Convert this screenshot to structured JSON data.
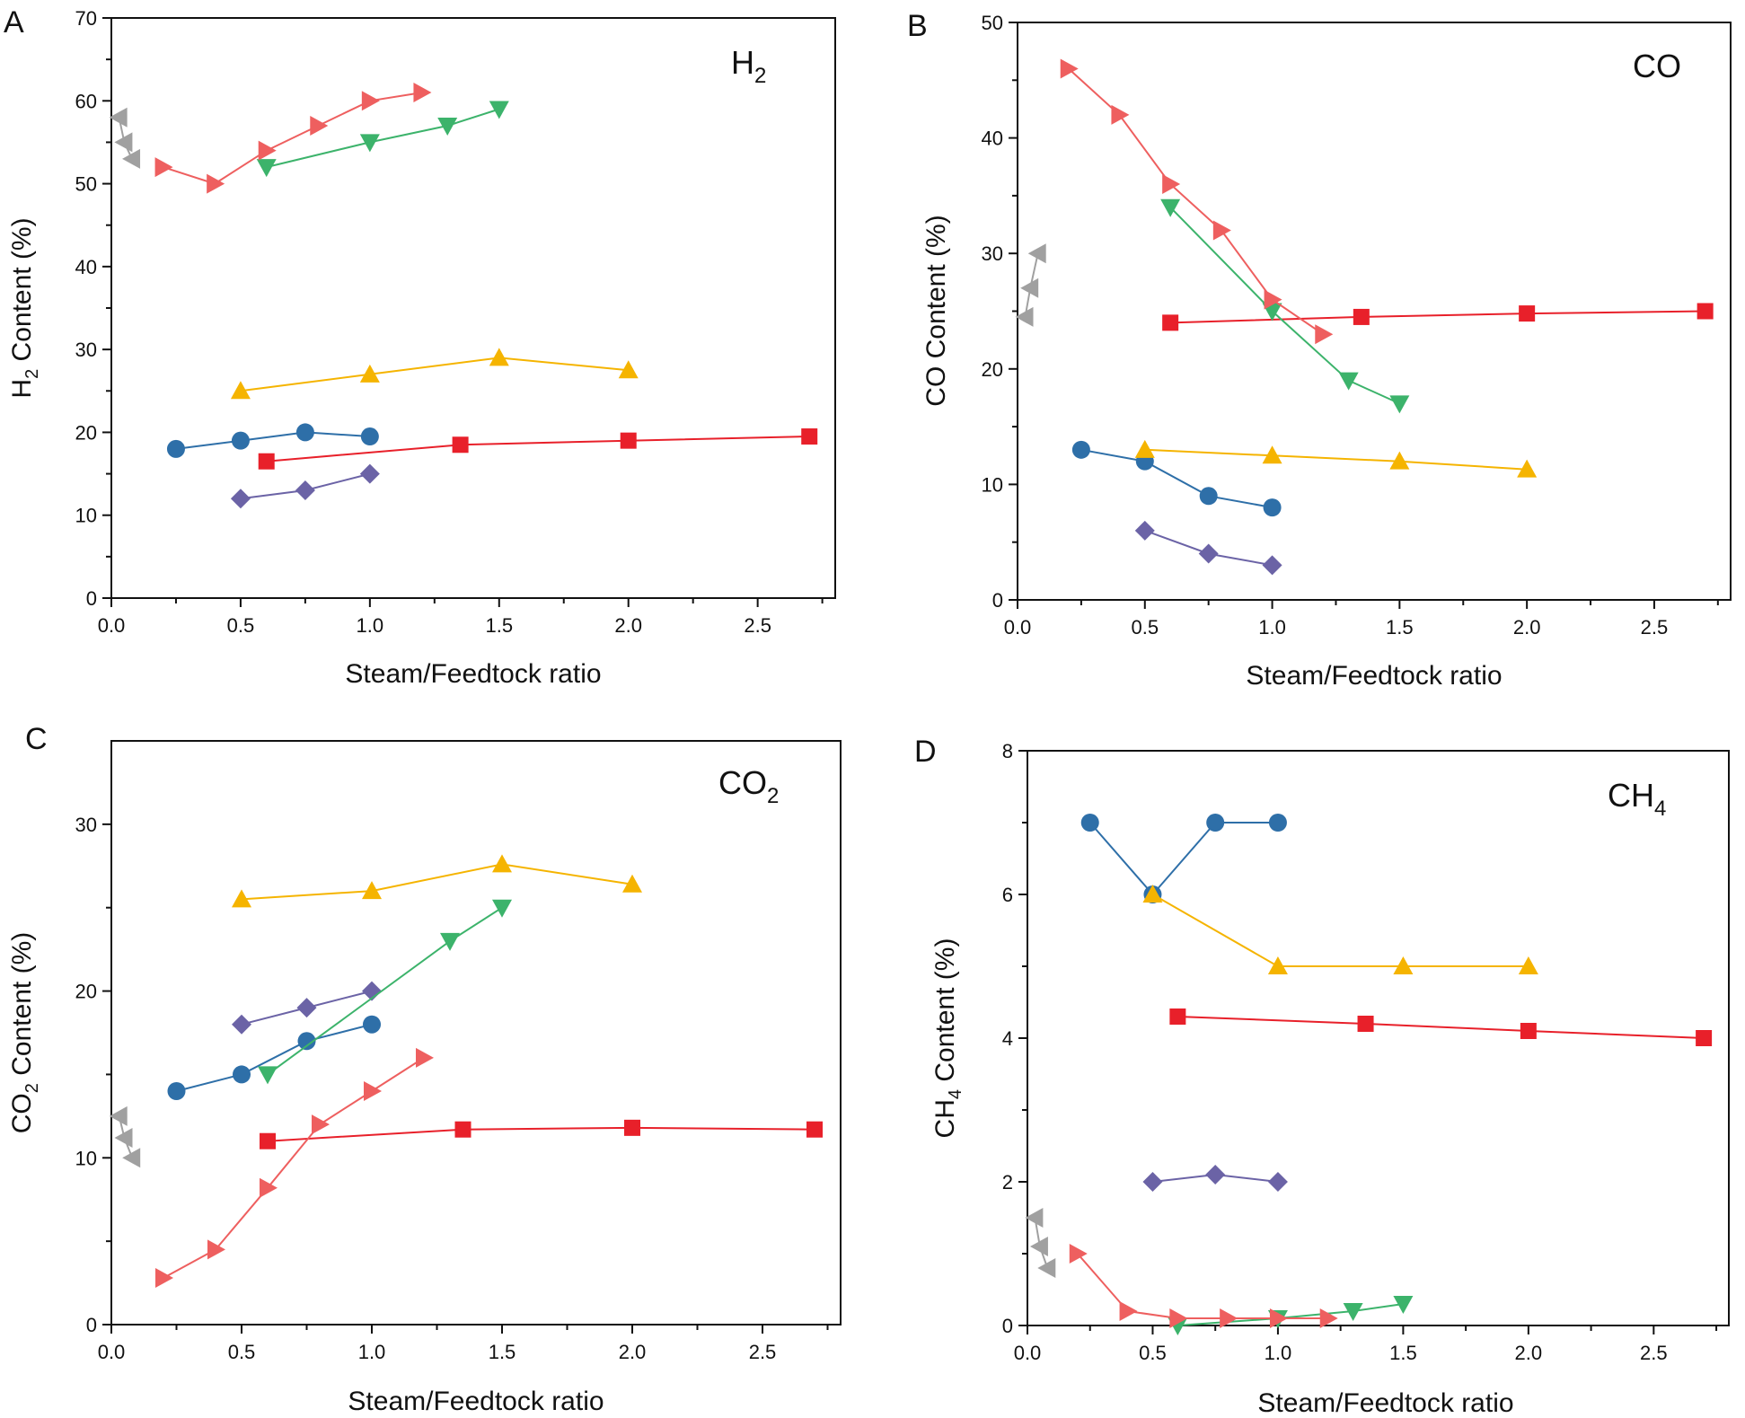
{
  "chart_data": [
    {
      "type": "line",
      "panel": "A",
      "title": "H2",
      "title_main": "H",
      "title_sub": "2",
      "xlabel": "Steam/Feedtock ratio",
      "ylabel": "H2 Content (%)",
      "ylabel_pre": "H",
      "ylabel_sub": "2",
      "ylabel_post": " Content (%)",
      "xlim": [
        0,
        2.8
      ],
      "ylim": [
        0,
        70
      ],
      "xticks": [
        0.0,
        0.5,
        1.0,
        1.5,
        2.0,
        2.5
      ],
      "xtick_labels": [
        "0.0",
        "0.5",
        "1.0",
        "1.5",
        "2.0",
        "2.5"
      ],
      "yticks": [
        0,
        10,
        20,
        30,
        40,
        50,
        60,
        70
      ],
      "ytick_labels": [
        "0",
        "10",
        "20",
        "30",
        "40",
        "50",
        "60",
        "70"
      ],
      "series": [
        {
          "name": "red-square",
          "marker": "square",
          "color": "#e8202a",
          "x": [
            0.6,
            1.35,
            2.0,
            2.7
          ],
          "y": [
            16.5,
            18.5,
            19.0,
            19.5
          ]
        },
        {
          "name": "blue-circle",
          "marker": "circle",
          "color": "#2e6fa8",
          "x": [
            0.25,
            0.5,
            0.75,
            1.0
          ],
          "y": [
            18.0,
            19.0,
            20.0,
            19.5
          ]
        },
        {
          "name": "yellow-triangle-up",
          "marker": "triangle-up",
          "color": "#f5b400",
          "x": [
            0.5,
            1.0,
            1.5,
            2.0
          ],
          "y": [
            25.0,
            27.0,
            29.0,
            27.5
          ]
        },
        {
          "name": "purple-diamond",
          "marker": "diamond",
          "color": "#6b63a6",
          "x": [
            0.5,
            0.75,
            1.0
          ],
          "y": [
            12.0,
            13.0,
            15.0
          ]
        },
        {
          "name": "green-triangle-down",
          "marker": "triangle-down",
          "color": "#3cb36b",
          "x": [
            0.6,
            1.0,
            1.3,
            1.5
          ],
          "y": [
            52.0,
            55.0,
            57.0,
            59.0
          ]
        },
        {
          "name": "salmon-triangle-right",
          "marker": "triangle-right",
          "color": "#ee5f5f",
          "x": [
            0.2,
            0.4,
            0.6,
            0.8,
            1.0,
            1.2
          ],
          "y": [
            52.0,
            50.0,
            54.0,
            57.0,
            60.0,
            61.0
          ]
        },
        {
          "name": "gray-triangle-left",
          "marker": "triangle-left",
          "color": "#a0a0a0",
          "x": [
            0.03,
            0.05,
            0.08
          ],
          "y": [
            58.0,
            55.0,
            53.0
          ]
        }
      ]
    },
    {
      "type": "line",
      "panel": "B",
      "title": "CO",
      "title_main": "CO",
      "title_sub": "",
      "xlabel": "Steam/Feedtock ratio",
      "ylabel": "CO Content (%)",
      "ylabel_pre": "CO Content (%)",
      "ylabel_sub": "",
      "ylabel_post": "",
      "xlim": [
        0,
        2.8
      ],
      "ylim": [
        0,
        50
      ],
      "xticks": [
        0.0,
        0.5,
        1.0,
        1.5,
        2.0,
        2.5
      ],
      "xtick_labels": [
        "0.0",
        "0.5",
        "1.0",
        "1.5",
        "2.0",
        "2.5"
      ],
      "yticks": [
        0,
        10,
        20,
        30,
        40,
        50
      ],
      "ytick_labels": [
        "0",
        "10",
        "20",
        "30",
        "40",
        "50"
      ],
      "series": [
        {
          "name": "red-square",
          "marker": "square",
          "color": "#e8202a",
          "x": [
            0.6,
            1.35,
            2.0,
            2.7
          ],
          "y": [
            24.0,
            24.5,
            24.8,
            25.0
          ]
        },
        {
          "name": "blue-circle",
          "marker": "circle",
          "color": "#2e6fa8",
          "x": [
            0.25,
            0.5,
            0.75,
            1.0
          ],
          "y": [
            13.0,
            12.0,
            9.0,
            8.0
          ]
        },
        {
          "name": "yellow-triangle-up",
          "marker": "triangle-up",
          "color": "#f5b400",
          "x": [
            0.5,
            1.0,
            1.5,
            2.0
          ],
          "y": [
            13.0,
            12.5,
            12.0,
            11.3
          ]
        },
        {
          "name": "purple-diamond",
          "marker": "diamond",
          "color": "#6b63a6",
          "x": [
            0.5,
            0.75,
            1.0
          ],
          "y": [
            6.0,
            4.0,
            3.0
          ]
        },
        {
          "name": "green-triangle-down",
          "marker": "triangle-down",
          "color": "#3cb36b",
          "x": [
            0.6,
            1.0,
            1.3,
            1.5
          ],
          "y": [
            34.0,
            25.0,
            19.0,
            17.0
          ]
        },
        {
          "name": "salmon-triangle-right",
          "marker": "triangle-right",
          "color": "#ee5f5f",
          "x": [
            0.2,
            0.4,
            0.6,
            0.8,
            1.0,
            1.2
          ],
          "y": [
            46.0,
            42.0,
            36.0,
            32.0,
            26.0,
            23.0
          ]
        },
        {
          "name": "gray-triangle-left",
          "marker": "triangle-left",
          "color": "#a0a0a0",
          "x": [
            0.03,
            0.05,
            0.08
          ],
          "y": [
            24.5,
            27.0,
            30.0
          ]
        }
      ]
    },
    {
      "type": "line",
      "panel": "C",
      "title": "CO2",
      "title_main": "CO",
      "title_sub": "2",
      "xlabel": "Steam/Feedtock ratio",
      "ylabel": "CO2 Content (%)",
      "ylabel_pre": "CO",
      "ylabel_sub": "2",
      "ylabel_post": " Content (%)",
      "xlim": [
        0,
        2.8
      ],
      "ylim": [
        0,
        35
      ],
      "xticks": [
        0.0,
        0.5,
        1.0,
        1.5,
        2.0,
        2.5
      ],
      "xtick_labels": [
        "0.0",
        "0.5",
        "1.0",
        "1.5",
        "2.0",
        "2.5"
      ],
      "yticks": [
        0,
        10,
        20,
        30
      ],
      "ytick_labels": [
        "0",
        "10",
        "20",
        "30"
      ],
      "series": [
        {
          "name": "red-square",
          "marker": "square",
          "color": "#e8202a",
          "x": [
            0.6,
            1.35,
            2.0,
            2.7
          ],
          "y": [
            11.0,
            11.7,
            11.8,
            11.7
          ]
        },
        {
          "name": "blue-circle",
          "marker": "circle",
          "color": "#2e6fa8",
          "x": [
            0.25,
            0.5,
            0.75,
            1.0
          ],
          "y": [
            14.0,
            15.0,
            17.0,
            18.0
          ]
        },
        {
          "name": "yellow-triangle-up",
          "marker": "triangle-up",
          "color": "#f5b400",
          "x": [
            0.5,
            1.0,
            1.5,
            2.0
          ],
          "y": [
            25.5,
            26.0,
            27.6,
            26.4
          ]
        },
        {
          "name": "purple-diamond",
          "marker": "diamond",
          "color": "#6b63a6",
          "x": [
            0.5,
            0.75,
            1.0
          ],
          "y": [
            18.0,
            19.0,
            20.0
          ]
        },
        {
          "name": "green-triangle-down",
          "marker": "triangle-down",
          "color": "#3cb36b",
          "x": [
            0.6,
            1.3,
            1.5
          ],
          "y": [
            15.0,
            23.0,
            25.0
          ]
        },
        {
          "name": "salmon-triangle-right",
          "marker": "triangle-right",
          "color": "#ee5f5f",
          "x": [
            0.2,
            0.4,
            0.6,
            0.8,
            1.0,
            1.2
          ],
          "y": [
            2.8,
            4.5,
            8.2,
            12.0,
            14.0,
            16.0
          ]
        },
        {
          "name": "gray-triangle-left",
          "marker": "triangle-left",
          "color": "#a0a0a0",
          "x": [
            0.03,
            0.05,
            0.08
          ],
          "y": [
            12.5,
            11.2,
            10.0
          ]
        }
      ]
    },
    {
      "type": "line",
      "panel": "D",
      "title": "CH4",
      "title_main": "CH",
      "title_sub": "4",
      "xlabel": "Steam/Feedtock ratio",
      "ylabel": "CH4 Content (%)",
      "ylabel_pre": "CH",
      "ylabel_sub": "4",
      "ylabel_post": " Content (%)",
      "xlim": [
        0,
        2.8
      ],
      "ylim": [
        0,
        8
      ],
      "xticks": [
        0.0,
        0.5,
        1.0,
        1.5,
        2.0,
        2.5
      ],
      "xtick_labels": [
        "0.0",
        "0.5",
        "1.0",
        "1.5",
        "2.0",
        "2.5"
      ],
      "yticks": [
        0,
        2,
        4,
        6,
        8
      ],
      "ytick_labels": [
        "0",
        "2",
        "4",
        "6",
        "8"
      ],
      "series": [
        {
          "name": "red-square",
          "marker": "square",
          "color": "#e8202a",
          "x": [
            0.6,
            1.35,
            2.0,
            2.7
          ],
          "y": [
            4.3,
            4.2,
            4.1,
            4.0
          ]
        },
        {
          "name": "blue-circle",
          "marker": "circle",
          "color": "#2e6fa8",
          "x": [
            0.25,
            0.5,
            0.75,
            1.0
          ],
          "y": [
            7.0,
            6.0,
            7.0,
            7.0
          ]
        },
        {
          "name": "yellow-triangle-up",
          "marker": "triangle-up",
          "color": "#f5b400",
          "x": [
            0.5,
            1.0,
            1.5,
            2.0
          ],
          "y": [
            6.0,
            5.0,
            5.0,
            5.0
          ]
        },
        {
          "name": "purple-diamond",
          "marker": "diamond",
          "color": "#6b63a6",
          "x": [
            0.5,
            0.75,
            1.0
          ],
          "y": [
            2.0,
            2.1,
            2.0
          ]
        },
        {
          "name": "green-triangle-down",
          "marker": "triangle-down",
          "color": "#3cb36b",
          "x": [
            0.6,
            1.0,
            1.3,
            1.5
          ],
          "y": [
            0.0,
            0.1,
            0.2,
            0.3
          ]
        },
        {
          "name": "salmon-triangle-right",
          "marker": "triangle-right",
          "color": "#ee5f5f",
          "x": [
            0.2,
            0.4,
            0.6,
            0.8,
            1.0,
            1.2
          ],
          "y": [
            1.0,
            0.2,
            0.1,
            0.1,
            0.1,
            0.1
          ]
        },
        {
          "name": "gray-triangle-left",
          "marker": "triangle-left",
          "color": "#a0a0a0",
          "x": [
            0.03,
            0.05,
            0.08
          ],
          "y": [
            1.5,
            1.1,
            0.8
          ]
        }
      ]
    }
  ]
}
